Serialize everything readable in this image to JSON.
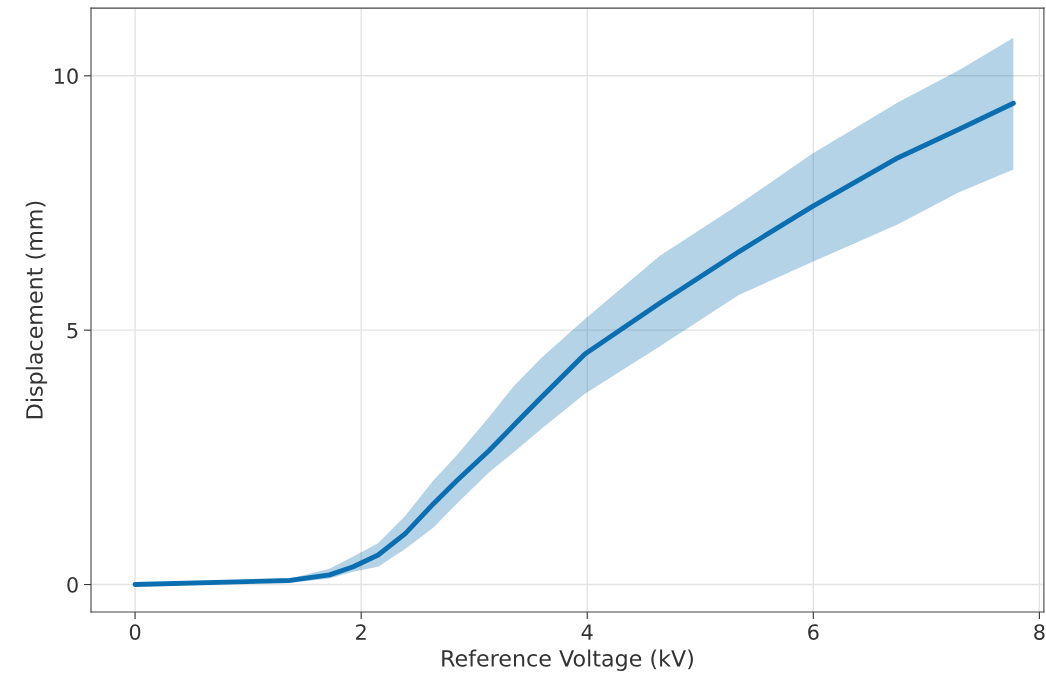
{
  "chart_data": {
    "type": "line",
    "xlabel": "Reference Voltage (kV)",
    "ylabel": "Displacement (mm)",
    "xlim": [
      -0.39,
      8.04
    ],
    "ylim": [
      -0.54,
      11.33
    ],
    "xticks": [
      0,
      2,
      4,
      6,
      8
    ],
    "yticks": [
      0,
      5,
      10
    ],
    "grid": true,
    "series": [
      {
        "color": "#0a6eb0",
        "x": [
          0,
          1.37,
          1.72,
          1.93,
          2.15,
          2.39,
          2.64,
          2.85,
          3.13,
          3.35,
          3.59,
          3.98,
          4.64,
          5.34,
          5.99,
          6.75,
          7.28,
          7.77
        ],
        "values": [
          0,
          0.08,
          0.19,
          0.35,
          0.58,
          1.0,
          1.59,
          2.05,
          2.63,
          3.13,
          3.67,
          4.53,
          5.53,
          6.54,
          7.43,
          8.39,
          8.94,
          9.46
        ],
        "lower": [
          0,
          0.03,
          0.12,
          0.25,
          0.35,
          0.7,
          1.12,
          1.6,
          2.2,
          2.6,
          3.05,
          3.75,
          4.68,
          5.69,
          6.34,
          7.08,
          7.7,
          8.16
        ],
        "upper": [
          0,
          0.12,
          0.31,
          0.55,
          0.81,
          1.35,
          2.05,
          2.55,
          3.29,
          3.9,
          4.45,
          5.22,
          6.46,
          7.47,
          8.47,
          9.48,
          10.1,
          10.75
        ]
      }
    ]
  }
}
